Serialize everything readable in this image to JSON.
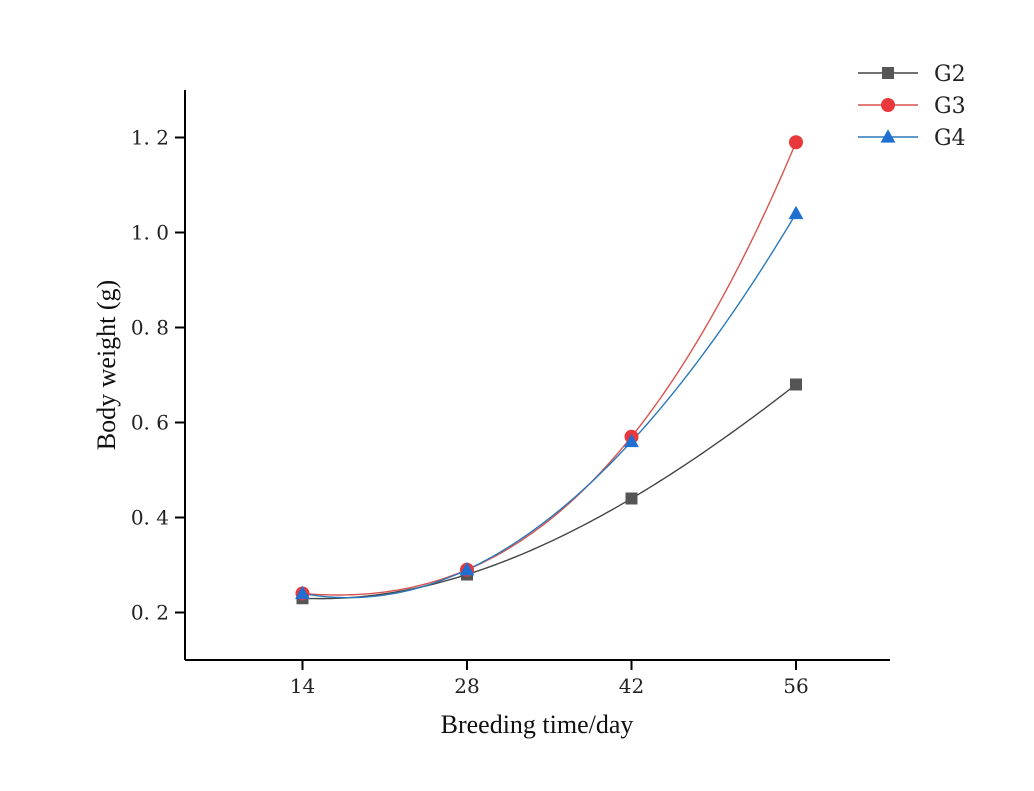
{
  "chart_data": {
    "type": "scatter",
    "xlabel": "Breeding time/day",
    "ylabel": "Body weight (g)",
    "xlim": [
      4,
      64
    ],
    "ylim": [
      0.1,
      1.3
    ],
    "x_ticks": [
      14,
      28,
      42,
      56
    ],
    "x_tick_labels": [
      "14",
      "28",
      "42",
      "56"
    ],
    "y_ticks": [
      0.2,
      0.4,
      0.6,
      0.8,
      1.0,
      1.2
    ],
    "y_tick_labels": [
      "0. 2",
      "0. 4",
      "0. 6",
      "0. 8",
      "1. 0",
      "1. 2"
    ],
    "grid": false,
    "legend_position": "top-right",
    "fitted_curves": true,
    "x": [
      14,
      28,
      42,
      56
    ],
    "series": [
      {
        "name": "G2",
        "marker": "square",
        "color": "#555555",
        "line_color": "#444444",
        "values": [
          0.23,
          0.28,
          0.44,
          0.68
        ]
      },
      {
        "name": "G3",
        "marker": "circle",
        "color": "#e8383c",
        "line_color": "#d9534f",
        "values": [
          0.24,
          0.29,
          0.57,
          1.19
        ]
      },
      {
        "name": "G4",
        "marker": "triangle",
        "color": "#1f6fd1",
        "line_color": "#2a79b8",
        "values": [
          0.24,
          0.29,
          0.56,
          1.04
        ]
      }
    ]
  }
}
